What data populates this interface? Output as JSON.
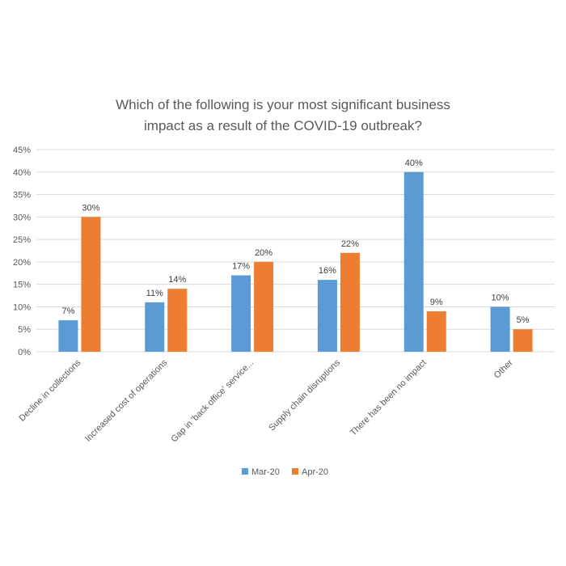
{
  "chart_data": {
    "type": "bar",
    "title_lines": [
      "Which of the following is your most significant business",
      "impact as a result of the COVID-19 outbreak?"
    ],
    "categories": [
      "Decline in collections",
      "Increased cost of operations",
      "Gap in 'back office' service...",
      "Supply chain disruptions",
      "There has been no impact",
      "Other"
    ],
    "series": [
      {
        "name": "Mar-20",
        "color": "#5b9bd5",
        "values": [
          7,
          11,
          17,
          16,
          40,
          10
        ]
      },
      {
        "name": "Apr-20",
        "color": "#ed7d31",
        "values": [
          30,
          14,
          20,
          22,
          9,
          5
        ]
      }
    ],
    "ylim": [
      0,
      45
    ],
    "ytick_step": 5,
    "value_suffix": "%",
    "grid": true,
    "legend_position": "bottom"
  }
}
